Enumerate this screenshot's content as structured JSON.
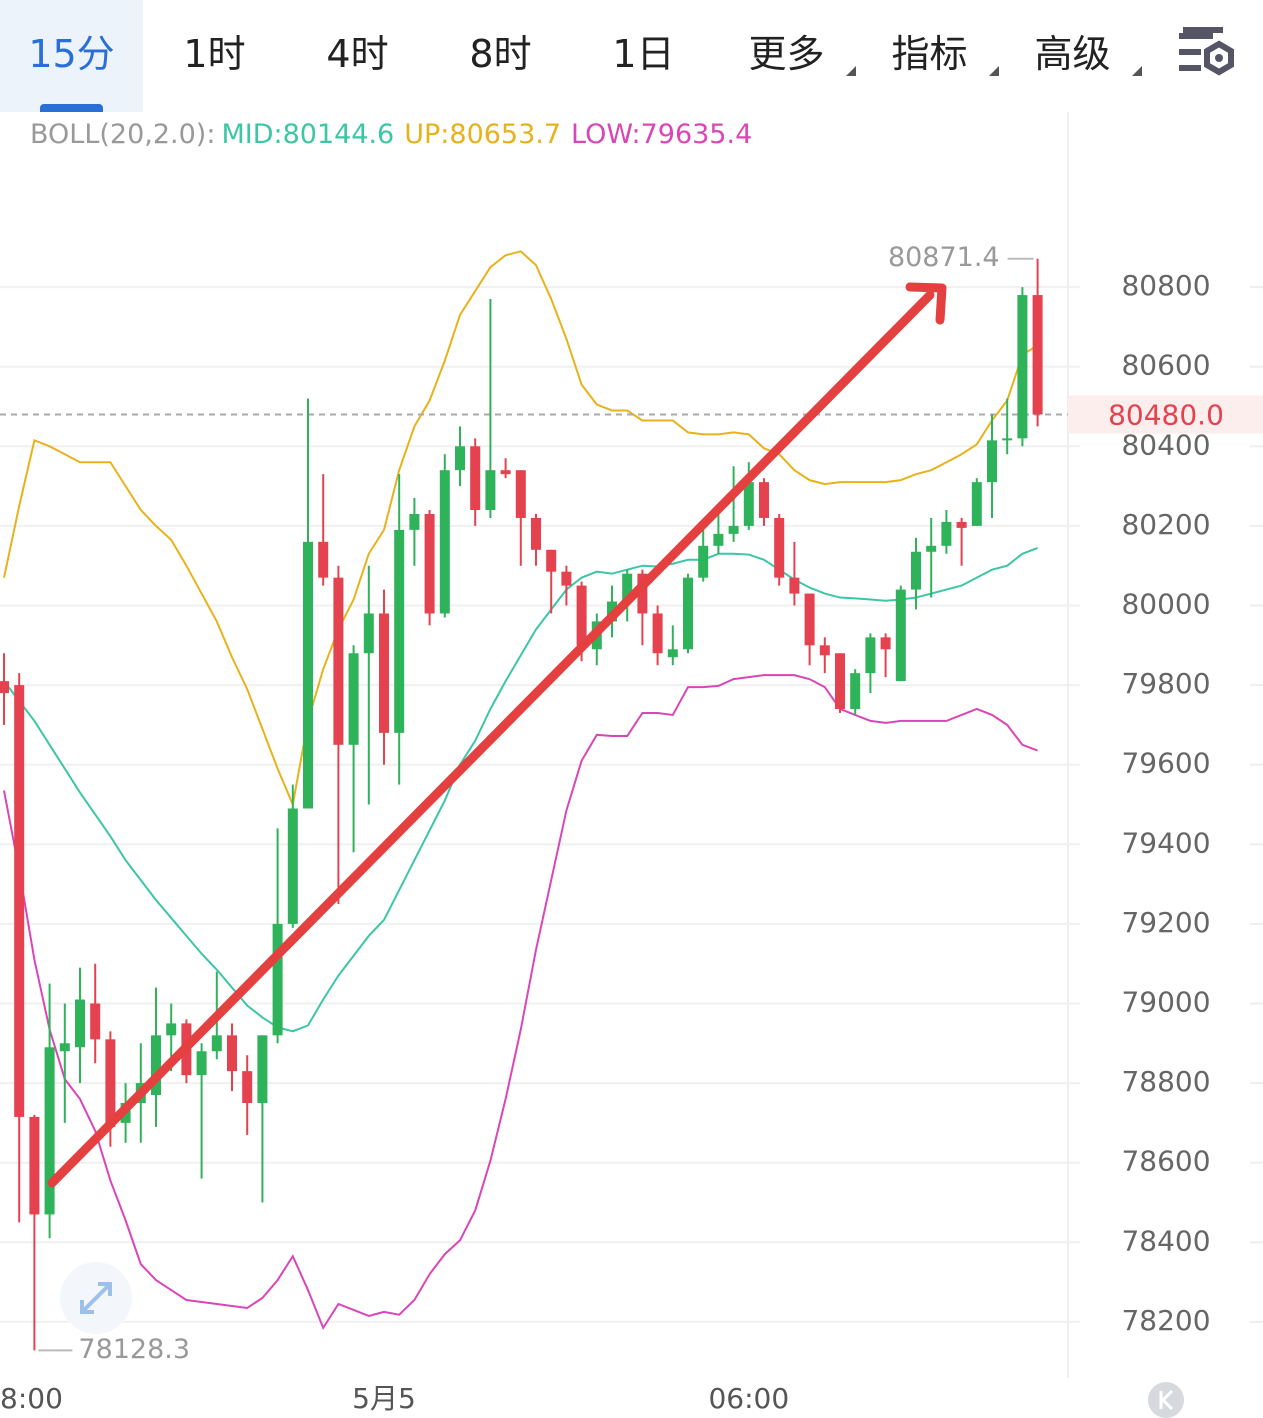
{
  "tabs": [
    "15分",
    "1时",
    "4时",
    "8时",
    "1日",
    "更多",
    "指标",
    "高级"
  ],
  "chart_data": {
    "type": "candlestick",
    "indicator_label": "BOLL(20,2.0):",
    "categories": [
      null,
      "8:00",
      null,
      null,
      null,
      null,
      null,
      null,
      null,
      null,
      null,
      null,
      null,
      null,
      null,
      null,
      null,
      null,
      null,
      null,
      null,
      null,
      null,
      null,
      null,
      "5月5",
      null,
      null,
      null,
      null,
      null,
      null,
      null,
      null,
      null,
      null,
      null,
      null,
      null,
      null,
      null,
      null,
      null,
      null,
      null,
      null,
      null,
      null,
      null,
      "06:00",
      null,
      null,
      null,
      null,
      null,
      null,
      null,
      null,
      null,
      null,
      null,
      null,
      null,
      null,
      null,
      null,
      null,
      null,
      null
    ],
    "open": [
      79810,
      79800,
      78715,
      78470,
      78880,
      78890,
      79000,
      78910,
      78700,
      78750,
      78770,
      78920,
      78950,
      78820,
      78880,
      78920,
      78830,
      78750,
      78920,
      79200,
      79490,
      80160,
      80070,
      79650,
      79880,
      79980,
      79680,
      80190,
      80230,
      79980,
      80340,
      80400,
      80240,
      80340,
      80340,
      80220,
      80140,
      80085,
      80050,
      79890,
      79960,
      80010,
      80080,
      79980,
      79870,
      79890,
      80070,
      80150,
      80180,
      80200,
      80310,
      80220,
      80070,
      80030,
      79900,
      79880,
      79740,
      79830,
      79920,
      79810,
      80040,
      80135,
      80150,
      80210,
      80200,
      80310,
      80415,
      80420,
      80780
    ],
    "high": [
      79880,
      79830,
      78720,
      79050,
      79000,
      79090,
      79100,
      78930,
      78800,
      78900,
      79040,
      79000,
      78960,
      78900,
      79080,
      78950,
      78870,
      78920,
      79440,
      79550,
      80520,
      80330,
      80100,
      79900,
      80100,
      80040,
      80330,
      80270,
      80240,
      80380,
      80450,
      80420,
      80770,
      80370,
      80340,
      80230,
      80140,
      80100,
      80060,
      79980,
      80050,
      80090,
      80090,
      80000,
      79950,
      80080,
      80200,
      80230,
      80350,
      80360,
      80320,
      80230,
      80160,
      80030,
      79920,
      79880,
      79840,
      79930,
      79930,
      80050,
      80170,
      80220,
      80240,
      80220,
      80320,
      80480,
      80520,
      80800,
      80871.4
    ],
    "low": [
      79700,
      78450,
      78128.3,
      78410,
      78700,
      78800,
      78850,
      78640,
      78650,
      78650,
      78690,
      78830,
      78800,
      78560,
      78860,
      78780,
      78670,
      78500,
      78900,
      79190,
      79490,
      80050,
      79250,
      79380,
      79500,
      79600,
      79550,
      80100,
      79950,
      79970,
      80300,
      80200,
      80220,
      80320,
      80100,
      80100,
      79980,
      80000,
      79860,
      79850,
      79920,
      79960,
      79900,
      79850,
      79850,
      79880,
      80060,
      80130,
      80160,
      80190,
      80200,
      80050,
      80000,
      79850,
      79830,
      79730,
      79725,
      79780,
      79820,
      79810,
      79990,
      80020,
      80130,
      80100,
      80200,
      80220,
      80380,
      80400,
      80450
    ],
    "close": [
      79780,
      78715,
      78470,
      78890,
      78900,
      79010,
      78910,
      78690,
      78750,
      78800,
      78920,
      78950,
      78820,
      78880,
      78920,
      78830,
      78750,
      78920,
      79200,
      79490,
      80160,
      80070,
      79650,
      79880,
      79980,
      79680,
      80190,
      80230,
      79980,
      80340,
      80400,
      80240,
      80340,
      80330,
      80220,
      80140,
      80085,
      80050,
      79900,
      79960,
      80010,
      80080,
      79980,
      79880,
      79890,
      80070,
      80150,
      80180,
      80200,
      80310,
      80220,
      80070,
      80030,
      79900,
      79875,
      79740,
      79830,
      79920,
      79890,
      80040,
      80135,
      80150,
      80210,
      80195,
      80310,
      80415,
      80420,
      80780,
      80480
    ],
    "up_color": "#2fb35a",
    "down_color": "#e5424f",
    "bands": [
      {
        "label": "MID:80144.6",
        "color": "#3cc6a6",
        "values": [
          79810,
          79760,
          79710,
          79650,
          79590,
          79530,
          79475,
          79420,
          79360,
          79310,
          79260,
          79215,
          79170,
          79125,
          79085,
          79040,
          78995,
          78965,
          78940,
          78930,
          78945,
          79010,
          79070,
          79120,
          79170,
          79210,
          79285,
          79360,
          79435,
          79510,
          79600,
          79660,
          79740,
          79810,
          79875,
          79940,
          79990,
          80040,
          80070,
          80085,
          80080,
          80090,
          80100,
          80098,
          80105,
          80115,
          80115,
          80130,
          80130,
          80128,
          80115,
          80090,
          80065,
          80045,
          80030,
          80020,
          80018,
          80015,
          80012,
          80015,
          80020,
          80030,
          80040,
          80050,
          80070,
          80090,
          80100,
          80130,
          80144.6
        ]
      },
      {
        "label": "UP:80653.7",
        "color": "#e8b21c",
        "values": [
          80070,
          80250,
          80415,
          80400,
          80380,
          80360,
          80360,
          80360,
          80300,
          80240,
          80200,
          80165,
          80100,
          80030,
          79960,
          79870,
          79790,
          79690,
          79590,
          79500,
          79710,
          79840,
          79940,
          80015,
          80130,
          80190,
          80340,
          80450,
          80515,
          80615,
          80730,
          80790,
          80850,
          80880,
          80890,
          80855,
          80770,
          80670,
          80555,
          80505,
          80490,
          80490,
          80465,
          80465,
          80465,
          80435,
          80430,
          80430,
          80435,
          80430,
          80395,
          80380,
          80340,
          80315,
          80305,
          80310,
          80310,
          80310,
          80310,
          80315,
          80330,
          80340,
          80360,
          80380,
          80405,
          80465,
          80515,
          80630,
          80653.7
        ]
      },
      {
        "label": "LOW:79635.4",
        "color": "#d946b8",
        "values": [
          79535,
          79335,
          79110,
          78935,
          78810,
          78760,
          78680,
          78555,
          78455,
          78345,
          78305,
          78280,
          78255,
          78250,
          78245,
          78240,
          78235,
          78260,
          78305,
          78365,
          78280,
          78185,
          78245,
          78230,
          78215,
          78225,
          78218,
          78255,
          78320,
          78370,
          78405,
          78480,
          78605,
          78760,
          78935,
          79135,
          79310,
          79485,
          79610,
          79675,
          79672,
          79672,
          79730,
          79730,
          79725,
          79795,
          79795,
          79798,
          79815,
          79820,
          79825,
          79825,
          79825,
          79815,
          79795,
          79740,
          79725,
          79710,
          79705,
          79710,
          79710,
          79710,
          79710,
          79725,
          79740,
          79725,
          79700,
          79650,
          79635.4
        ]
      }
    ],
    "ylim": [
      78059,
      81240
    ],
    "yticks": [
      78200,
      78400,
      78600,
      78800,
      79000,
      79200,
      79400,
      79600,
      79800,
      80000,
      80200,
      80400,
      80600,
      80800
    ],
    "grid": true,
    "last_price": {
      "value": 80480,
      "label": "80480.0"
    },
    "max_label": {
      "value": 80871.4,
      "label": "80871.4"
    },
    "min_label": {
      "value": 78128.3,
      "label": "78128.3"
    }
  }
}
